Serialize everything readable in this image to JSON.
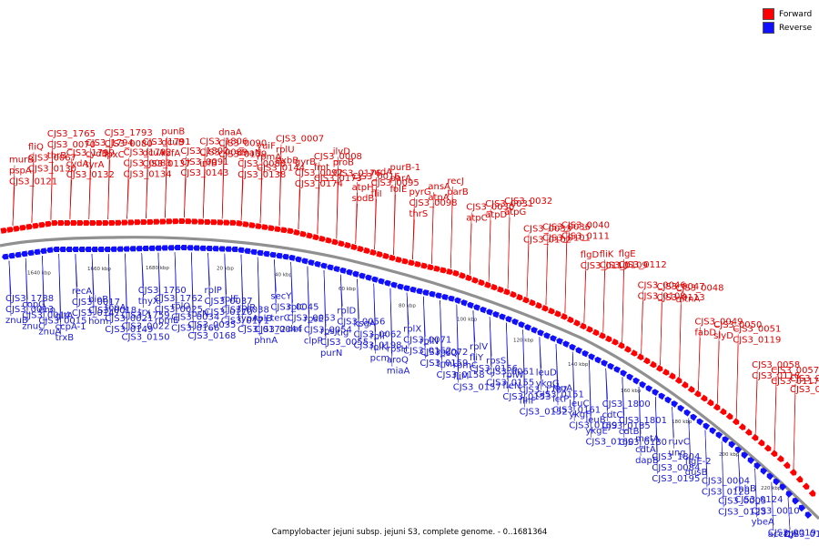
{
  "legend": {
    "forward_label": "Forward",
    "forward_color": "#ff0000",
    "reverse_label": "Reverse",
    "reverse_color": "#1010ff"
  },
  "caption": "Campylobacter jejuni subsp. jejuni S3, complete genome. - 0..1681364",
  "ticks": [
    "1640 kbp",
    "1660 kbp",
    "1680 kbp",
    "20 kbp",
    "40 kbp",
    "60 kbp",
    "80 kbp",
    "100 kbp",
    "120 kbp",
    "140 kbp",
    "160 kbp",
    "180 kbp",
    "200 kbp",
    "220 kbp"
  ],
  "forward_labels": [
    "murB",
    "fliQ",
    "CJS3_1765",
    "CJS3_1799",
    "CJS3_1794",
    "CJS3_1793",
    "CJS3_1792",
    "CJS3_1791",
    "punB",
    "CJS3_1802",
    "CJS3_1806",
    "dnaA",
    "dnaN",
    "yuiF",
    "CJS3_0007",
    "gyrB",
    "CJS3_0008",
    "ilvD",
    "CJS3_0016",
    "nrdA",
    "purB-1",
    "pyrG",
    "ansA",
    "recJ",
    "CJS3_0030",
    "CJS3_0031",
    "CJS3_0032",
    "CJS3_0033",
    "CJS3_0036",
    "CJS3_0040",
    "flgD",
    "fliK",
    "flgE",
    "CJS3_0046",
    "CJS3_0047",
    "CJS3_0048",
    "CJS3_0049",
    "CJS3_0050",
    "CJS3_0051",
    "CJS3_0058",
    "CJS3_0057",
    "CJS3_0069",
    "pspA",
    "CJS3_0067",
    "CJS3_0070",
    "cydA",
    "cydB",
    "CJS3_0080",
    "CJS3_0083",
    "dcuA",
    "dcuB",
    "CJS3_0091",
    "CJS3_0089",
    "CJS3_0090",
    "CJS3_0088",
    "rpmA",
    "rplU",
    "CJS3_0092",
    "fmt",
    "proB",
    "atpH",
    "CJS3_0095",
    "parA",
    "CJS3_0098",
    "atpA",
    "parB",
    "atpC",
    "atpD",
    "atpG",
    "CJS3_0102",
    "CJS3_0101",
    "CJS3_0111",
    "CJS3_0110",
    "CJS3_0109",
    "CJS3_0112",
    "CJS3_0108",
    "CJS3_0113",
    "mtnA",
    "fabD",
    "slyD",
    "CJS3_0119",
    "CJS3_0118",
    "CJS3_0117",
    "CJS3_0120",
    "CJS3_0121",
    "CJS3_0130",
    "thrB",
    "CJS3_0132",
    "tyrA",
    "lpxC",
    "CJS3_0134",
    "CJS3_0137",
    "rbfA",
    "CJS3_0143",
    "infB",
    "CJS3_0139",
    "CJS3_0138",
    "CJS3_0144",
    "exbB",
    "CJS3_0174",
    "CJS3_0173",
    "CJS3_0176",
    "sodB",
    "fliI",
    "folE",
    "thrS"
  ],
  "reverse_labels": [
    "CJS3_1788",
    "copG",
    "eno",
    "gltA",
    "recA",
    "bioB",
    "topA",
    "CJS3_1759",
    "CJS3_1760",
    "CJS3_1762",
    "rplO",
    "rpsN",
    "rplP",
    "rplE",
    "rplR",
    "rplB",
    "secY",
    "rplC",
    "rpsE",
    "rpsJ",
    "rplD",
    "ksgA",
    "rplF",
    "rpsH",
    "rplX",
    "rplN",
    "rpsQ",
    "rpmC",
    "rplV",
    "rpsS",
    "rplW",
    "CJS3_1787",
    "leuD",
    "leuA",
    "leuC",
    "leuB",
    "CJS3_1800",
    "CJS3_1801",
    "metA",
    "CJS3_1804",
    "ruvC",
    "flgE-2",
    "CJS3_0004",
    "CJS3_0005",
    "rnhB",
    "CJS3_0010",
    "CJS3_0019",
    "rbr",
    "CJS3_0013",
    "CJS3_0014",
    "CJS3_0015",
    "ccpA-1",
    "CJS3_0017",
    "CJS3_0018",
    "CJS3_0021",
    "CJS3_0022",
    "thyX",
    "CJS3_0025",
    "CJS3_0034",
    "CJS3_0035",
    "CJS3_0037",
    "CJS3_0038",
    "typA",
    "CJS3_0044",
    "CJS3_0045",
    "CJS3_0053",
    "CJS3_0054",
    "CJS3_0055",
    "CJS3_0056",
    "CJS3_0062",
    "folK",
    "aroQ",
    "CJS3_0071",
    "CJS3_0072",
    "trmU",
    "fliM",
    "fliY",
    "CJS3_0061",
    "fleN",
    "flhF",
    "ykgG",
    "lctP",
    "ykgF",
    "ykgE",
    "cdtC",
    "cdtB",
    "cdtA",
    "CJS3_0084",
    "ung",
    "dusB",
    "CJS3_0128",
    "CJS3_0123",
    "CJS3_0124",
    "ybeA",
    "accD",
    "CJS3_0127",
    "znuB",
    "znuC",
    "znuA",
    "trxB",
    "CJS3_0147",
    "hom",
    "CJS3_0149",
    "CJS3_0150",
    "trx",
    "rpmE",
    "CJS3_0166",
    "CJS3_0168",
    "CJS3_0170",
    "CJS3_0171",
    "CJS3_0172",
    "phnA",
    "terC",
    "def",
    "clpP",
    "purN",
    "tig",
    "CJS3_0198",
    "pcm",
    "miaA",
    "CJS3_0162",
    "CJS3_0159",
    "CJS3_0158",
    "CJS3_0157",
    "CJS3_0156",
    "CJS3_0155",
    "CJS3_0153",
    "CJS3_0152",
    "CJS3_0151",
    "CJS3_0161",
    "CJS3_0169",
    "CJS3_0160",
    "CJS3_0185",
    "CJS3_0180",
    "dapB",
    "CJS3_0195"
  ]
}
